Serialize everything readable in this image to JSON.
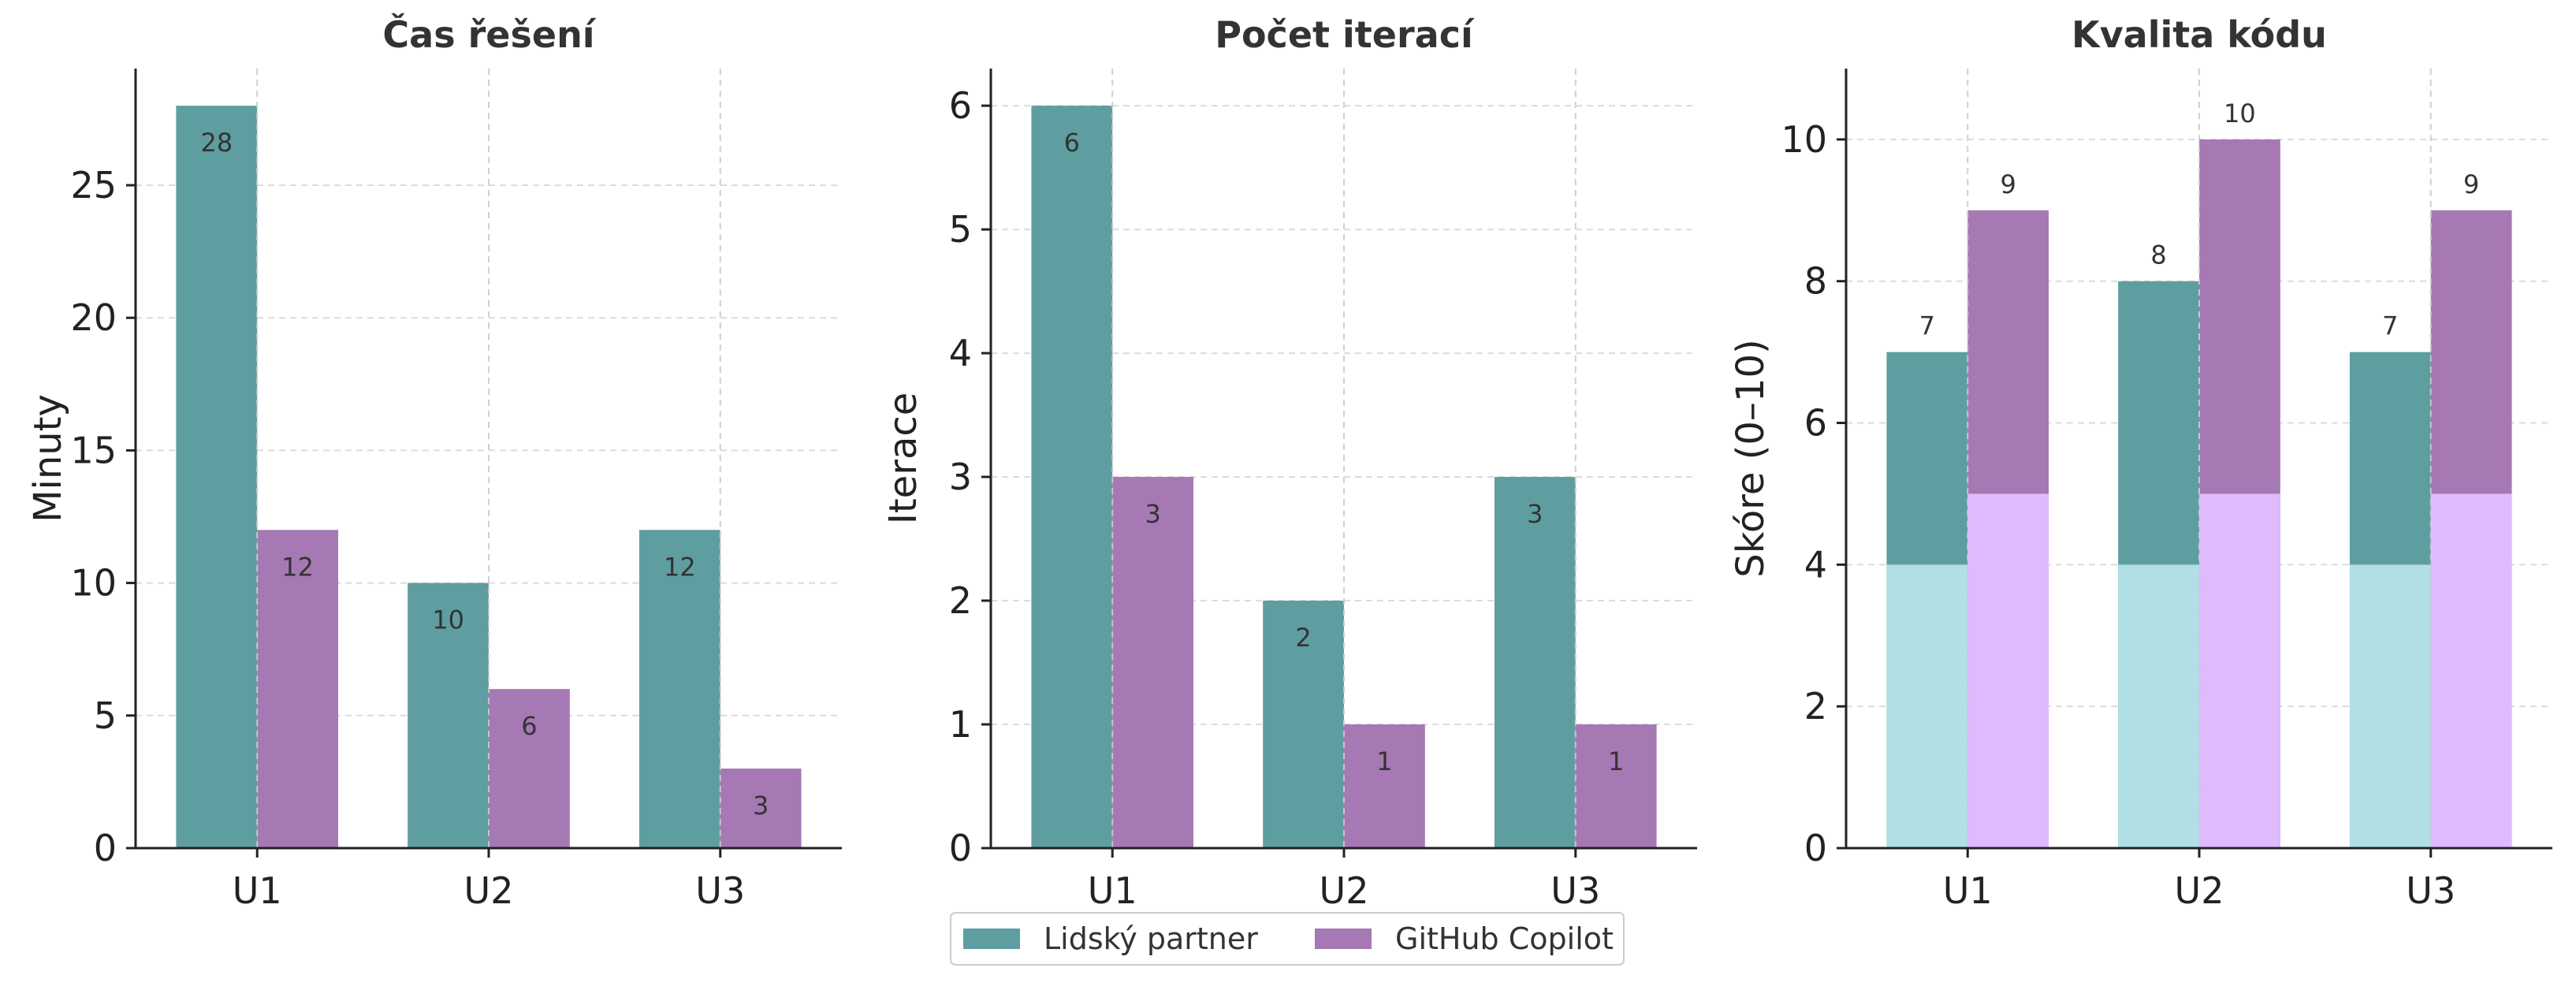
{
  "colors": {
    "human": "#5f9ea0",
    "copilot": "#a678b4",
    "human_base": "#b0dfe5",
    "copilot_base": "#dfbaff",
    "grid": "#cccccc",
    "axis": "#222222"
  },
  "legend": {
    "items": [
      {
        "label": "Lidský partner",
        "color": "#5f9ea0"
      },
      {
        "label": "GitHub Copilot",
        "color": "#a678b4"
      }
    ],
    "placement": "bottom-center"
  },
  "chart_data": [
    {
      "type": "bar",
      "title": "Čas řešení",
      "ylabel": "Minuty",
      "xlabel": "",
      "categories": [
        "U1",
        "U2",
        "U3"
      ],
      "series": [
        {
          "name": "Lidský partner",
          "values": [
            28,
            10,
            12
          ]
        },
        {
          "name": "GitHub Copilot",
          "values": [
            12,
            6,
            3
          ]
        }
      ],
      "ylim": [
        0,
        29.4
      ],
      "yticks": [
        0,
        5,
        10,
        15,
        20,
        25
      ],
      "label_position": "inside",
      "grid": true
    },
    {
      "type": "bar",
      "title": "Počet iterací",
      "ylabel": "Iterace",
      "xlabel": "",
      "categories": [
        "U1",
        "U2",
        "U3"
      ],
      "series": [
        {
          "name": "Lidský partner",
          "values": [
            6,
            2,
            3
          ]
        },
        {
          "name": "GitHub Copilot",
          "values": [
            3,
            1,
            1
          ]
        }
      ],
      "ylim": [
        0,
        6.3
      ],
      "yticks": [
        0,
        1,
        2,
        3,
        4,
        5,
        6
      ],
      "label_position": "inside",
      "grid": true
    },
    {
      "type": "bar",
      "title": "Kvalita kódu",
      "ylabel": "Skóre (0–10)",
      "xlabel": "",
      "categories": [
        "U1",
        "U2",
        "U3"
      ],
      "series": [
        {
          "name": "Lidský partner",
          "values": [
            7,
            8,
            7
          ],
          "base_values": [
            4,
            4,
            4
          ]
        },
        {
          "name": "GitHub Copilot",
          "values": [
            9,
            10,
            9
          ],
          "base_values": [
            5,
            5,
            5
          ]
        }
      ],
      "ylim": [
        0,
        11
      ],
      "yticks": [
        0,
        2,
        4,
        6,
        8,
        10
      ],
      "label_position": "above",
      "grid": true
    }
  ]
}
